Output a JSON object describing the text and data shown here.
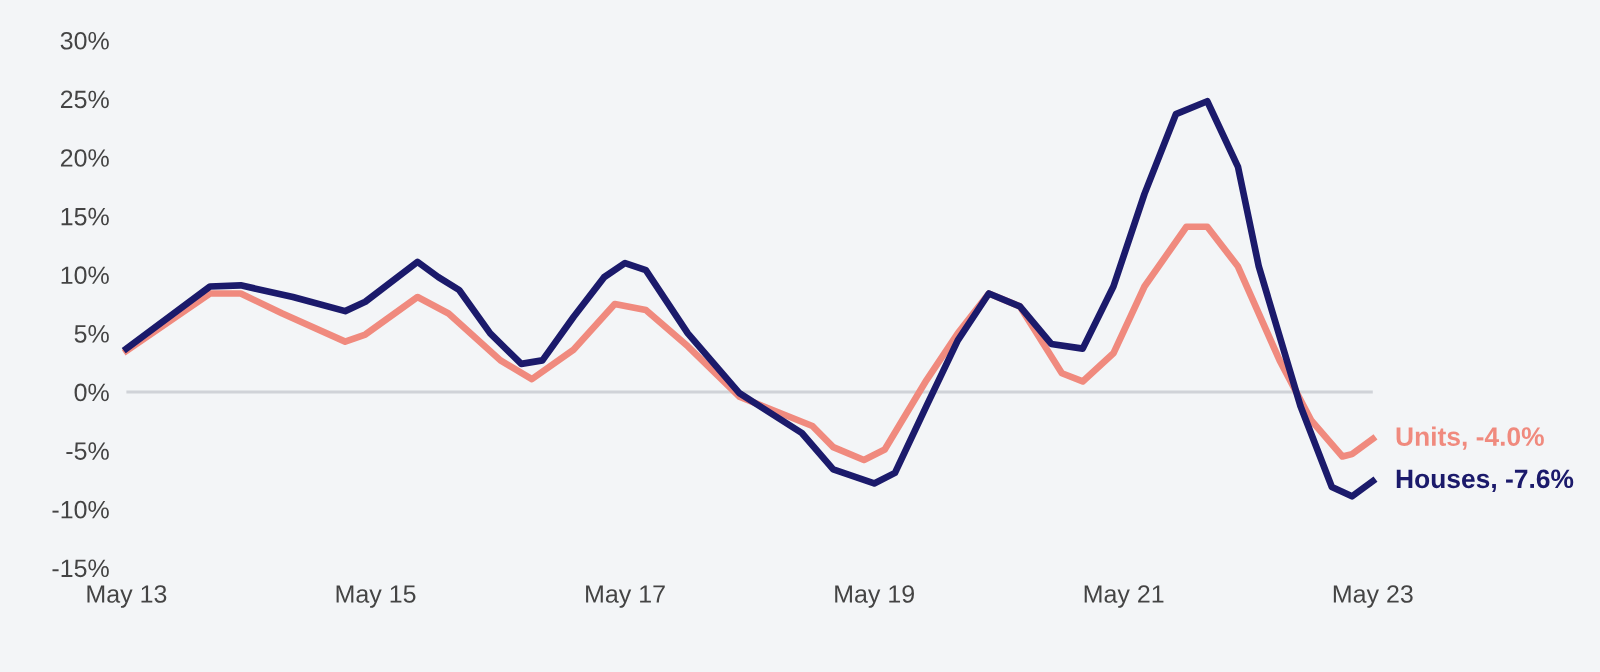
{
  "chart_data": {
    "type": "line",
    "series": [
      {
        "name": "Units, -4.0%",
        "color": "#f08a7e",
        "x": [
          "2013-05",
          "2014-01",
          "2014-04",
          "2014-08",
          "2015-02",
          "2015-04",
          "2015-09",
          "2015-12",
          "2016-05",
          "2016-08",
          "2016-12",
          "2017-04",
          "2017-07",
          "2017-11",
          "2018-04",
          "2018-11",
          "2019-01",
          "2019-04",
          "2019-06",
          "2019-10",
          "2020-01",
          "2020-04",
          "2020-07",
          "2020-11",
          "2021-01",
          "2021-04",
          "2021-07",
          "2021-11",
          "2022-01",
          "2022-04",
          "2022-08",
          "2022-11",
          "2023-02",
          "2023-03",
          "2023-05"
        ],
        "values": [
          3.5,
          8.4,
          8.4,
          6.7,
          4.3,
          4.9,
          8.1,
          6.7,
          2.7,
          1.1,
          3.6,
          7.5,
          7.0,
          3.9,
          -0.4,
          -2.9,
          -4.7,
          -5.8,
          -4.9,
          1.0,
          5.0,
          8.4,
          7.3,
          1.6,
          0.9,
          3.3,
          9.0,
          14.1,
          14.1,
          10.7,
          2.7,
          -2.4,
          -5.5,
          -5.3,
          -4.0
        ]
      },
      {
        "name": "Houses, -7.6%",
        "color": "#1b1a6b",
        "x": [
          "2013-05",
          "2014-01",
          "2014-04",
          "2014-09",
          "2015-02",
          "2015-04",
          "2015-09",
          "2015-11",
          "2016-01",
          "2016-04",
          "2016-07",
          "2016-09",
          "2016-12",
          "2017-03",
          "2017-05",
          "2017-07",
          "2017-11",
          "2018-04",
          "2018-10",
          "2019-01",
          "2019-05",
          "2019-07",
          "2019-10",
          "2020-01",
          "2020-04",
          "2020-07",
          "2020-10",
          "2021-01",
          "2021-04",
          "2021-07",
          "2021-10",
          "2022-01",
          "2022-04",
          "2022-06",
          "2022-10",
          "2023-01",
          "2023-03",
          "2023-05"
        ],
        "values": [
          3.7,
          9.0,
          9.1,
          8.1,
          6.9,
          7.7,
          11.1,
          9.8,
          8.7,
          5.0,
          2.4,
          2.7,
          6.4,
          9.8,
          11.0,
          10.4,
          5.0,
          -0.1,
          -3.5,
          -6.6,
          -7.8,
          -6.9,
          -1.2,
          4.4,
          8.4,
          7.3,
          4.1,
          3.7,
          9.0,
          16.9,
          23.7,
          24.8,
          19.2,
          10.7,
          -1.2,
          -8.1,
          -8.9,
          -7.6
        ]
      }
    ],
    "xlim": [
      "2013-05",
      "2023-05"
    ],
    "xticks": [
      {
        "value": "2013-05",
        "label": "May 13"
      },
      {
        "value": "2015-05",
        "label": "May 15"
      },
      {
        "value": "2017-05",
        "label": "May 17"
      },
      {
        "value": "2019-05",
        "label": "May 19"
      },
      {
        "value": "2021-05",
        "label": "May 21"
      },
      {
        "value": "2023-05",
        "label": "May 23"
      }
    ],
    "ylim": [
      -15,
      30
    ],
    "yticks": [
      {
        "value": -15,
        "label": "-15%"
      },
      {
        "value": -10,
        "label": "-10%"
      },
      {
        "value": -5,
        "label": "-5%"
      },
      {
        "value": 0,
        "label": "0%"
      },
      {
        "value": 5,
        "label": "5%"
      },
      {
        "value": 10,
        "label": "10%"
      },
      {
        "value": 15,
        "label": "15%"
      },
      {
        "value": 20,
        "label": "20%"
      },
      {
        "value": 25,
        "label": "25%"
      },
      {
        "value": 30,
        "label": "30%"
      }
    ],
    "ref_lines": [
      {
        "axis": "y",
        "value": 0,
        "color": "#d0d3d8"
      }
    ],
    "grid": false,
    "line_style": "solid"
  }
}
